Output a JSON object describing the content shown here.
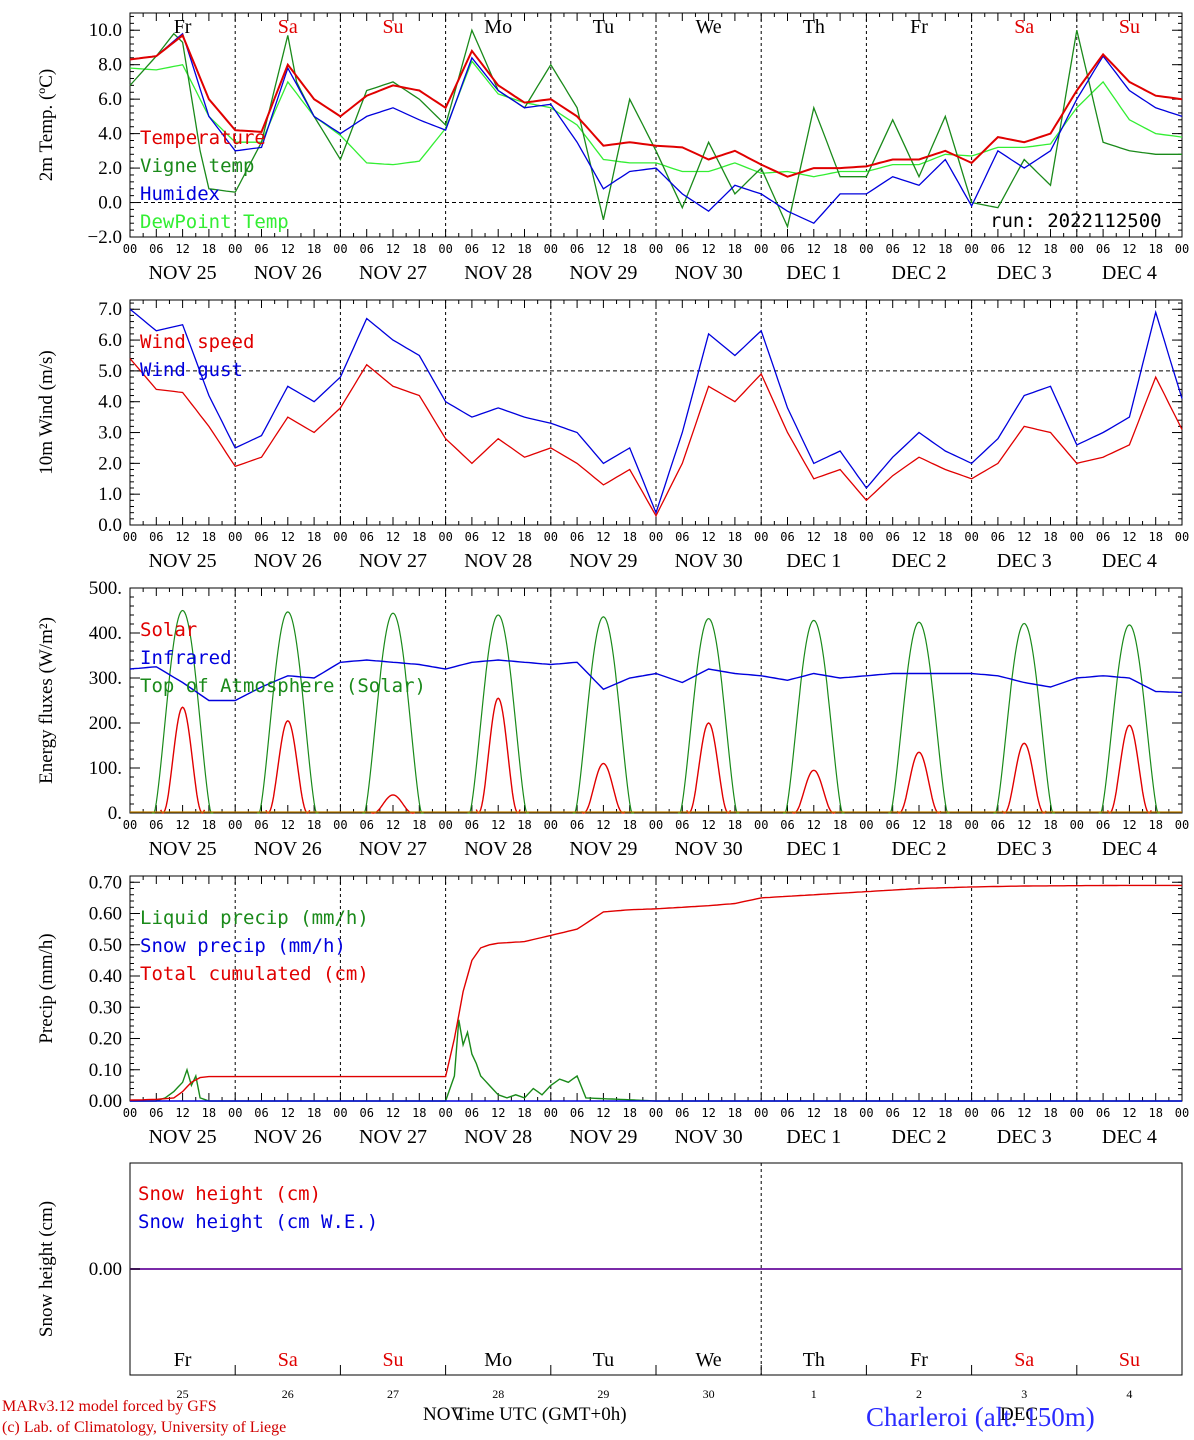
{
  "run_label": "run: 2022112500",
  "station": "Charleroi (alt. 150m)",
  "footer": {
    "model": "MARv3.12 model forced by GFS",
    "credit": "(c) Lab. of Climatology, University of Liege",
    "xlabel": "Time UTC (GMT+0h)",
    "month_left": "NOV",
    "month_right": "DEC"
  },
  "days": [
    "NOV 25",
    "NOV 26",
    "NOV 27",
    "NOV 28",
    "NOV 29",
    "NOV 30",
    "DEC  1",
    "DEC  2",
    "DEC  3",
    "DEC  4"
  ],
  "day_numbers": [
    "25",
    "26",
    "27",
    "28",
    "29",
    "30",
    "1",
    "2",
    "3",
    "4"
  ],
  "weekdays": [
    "Fr",
    "Sa",
    "Su",
    "Mo",
    "Tu",
    "We",
    "Th",
    "Fr",
    "Sa",
    "Su"
  ],
  "weekday_colors": [
    "#000000",
    "#e00000",
    "#e00000",
    "#000000",
    "#000000",
    "#000000",
    "#000000",
    "#000000",
    "#e00000",
    "#e00000"
  ],
  "hour_ticks": [
    "00",
    "06",
    "12",
    "18"
  ],
  "chart_data": [
    {
      "type": "line",
      "ylabel": "2m Temp. (ºC)",
      "ylim": [
        -2,
        11
      ],
      "yticks": [
        "−2.0",
        "0.0",
        "2.0",
        "4.0",
        "6.0",
        "8.0",
        "10.0"
      ],
      "ytick_values": [
        -2,
        0,
        2,
        4,
        6,
        8,
        10
      ],
      "dashed_ref": 0,
      "legend_placement": "left",
      "series": [
        {
          "name": "Temperature",
          "color": "#e00000",
          "x": [
            0,
            6,
            12,
            18,
            24,
            30,
            36,
            42,
            48,
            54,
            60,
            66,
            72,
            78,
            84,
            90,
            96,
            102,
            108,
            114,
            120,
            126,
            132,
            138,
            144,
            150,
            156,
            162,
            168,
            174,
            180,
            186,
            192,
            198,
            204,
            210,
            216,
            222,
            228,
            234,
            240
          ],
          "values": [
            8.3,
            8.5,
            9.7,
            6.0,
            4.2,
            4.1,
            8.0,
            6.0,
            5.0,
            6.2,
            6.8,
            6.5,
            5.5,
            8.8,
            6.8,
            5.8,
            6.0,
            5.0,
            3.3,
            3.5,
            3.3,
            3.2,
            2.5,
            3.0,
            2.2,
            1.5,
            2.0,
            2.0,
            2.1,
            2.5,
            2.5,
            3.0,
            2.3,
            3.8,
            3.5,
            4.0,
            6.5,
            8.6,
            7.0,
            6.2,
            6.0
          ]
        },
        {
          "name": "Vigne temp",
          "color": "#1a8a1a",
          "x": [
            0,
            6,
            10,
            12,
            16,
            18,
            24,
            30,
            36,
            38,
            42,
            48,
            54,
            60,
            66,
            72,
            78,
            84,
            90,
            96,
            102,
            108,
            114,
            120,
            126,
            132,
            138,
            144,
            150,
            156,
            162,
            168,
            174,
            180,
            186,
            192,
            198,
            204,
            210,
            216,
            222,
            228,
            234,
            240
          ],
          "values": [
            6.8,
            8.5,
            9.8,
            9.3,
            3.0,
            0.8,
            0.6,
            3.5,
            9.7,
            7.0,
            5.0,
            2.5,
            6.5,
            7.0,
            6.0,
            4.5,
            10.0,
            6.5,
            5.5,
            8.0,
            5.5,
            -1.0,
            6.0,
            3.0,
            -0.3,
            3.5,
            0.5,
            2.0,
            -1.4,
            5.5,
            1.5,
            1.5,
            4.8,
            1.5,
            5.0,
            0.0,
            -0.3,
            2.5,
            1.0,
            10.0,
            3.5,
            3.0,
            2.8,
            2.8
          ]
        },
        {
          "name": "Humidex",
          "color": "#0000dd",
          "x": [
            0,
            6,
            12,
            18,
            24,
            30,
            36,
            42,
            48,
            54,
            60,
            66,
            72,
            78,
            84,
            90,
            96,
            102,
            108,
            114,
            120,
            126,
            132,
            138,
            144,
            150,
            156,
            162,
            168,
            174,
            180,
            186,
            192,
            198,
            204,
            210,
            216,
            222,
            228,
            234,
            240
          ],
          "values": [
            8.3,
            8.5,
            9.8,
            5.0,
            3.0,
            3.2,
            7.8,
            5.0,
            4.0,
            5.0,
            5.5,
            4.8,
            4.2,
            8.4,
            6.5,
            5.5,
            5.7,
            3.5,
            0.8,
            1.8,
            2.0,
            0.5,
            -0.5,
            1.0,
            0.5,
            -0.5,
            -1.2,
            0.5,
            0.5,
            1.5,
            1.0,
            2.5,
            -0.2,
            3.0,
            2.0,
            3.0,
            6.0,
            8.5,
            6.5,
            5.5,
            5.0
          ]
        },
        {
          "name": "DewPoint Temp",
          "color": "#33ee33",
          "x": [
            0,
            6,
            12,
            18,
            24,
            30,
            36,
            42,
            48,
            54,
            60,
            66,
            72,
            78,
            84,
            90,
            96,
            102,
            108,
            114,
            120,
            126,
            132,
            138,
            144,
            150,
            156,
            162,
            168,
            174,
            180,
            186,
            192,
            198,
            204,
            210,
            216,
            222,
            228,
            234,
            240
          ],
          "values": [
            7.8,
            7.7,
            8.0,
            5.0,
            3.5,
            3.5,
            7.0,
            5.0,
            3.9,
            2.3,
            2.2,
            2.4,
            4.3,
            8.2,
            6.3,
            5.8,
            5.5,
            4.5,
            2.5,
            2.3,
            2.3,
            1.8,
            1.8,
            2.3,
            1.7,
            1.8,
            1.5,
            1.8,
            1.8,
            2.2,
            2.2,
            2.8,
            2.7,
            3.2,
            3.2,
            3.4,
            5.5,
            7.0,
            4.8,
            4.0,
            3.8
          ]
        }
      ]
    },
    {
      "type": "line",
      "ylabel": "10m Wind (m/s)",
      "ylim": [
        0,
        7.3
      ],
      "yticks": [
        "0.0",
        "1.0",
        "2.0",
        "3.0",
        "4.0",
        "5.0",
        "6.0",
        "7.0"
      ],
      "ytick_values": [
        0,
        1,
        2,
        3,
        4,
        5,
        6,
        7
      ],
      "dashed_ref": 5,
      "legend_placement": "top-left",
      "series": [
        {
          "name": "Wind speed",
          "color": "#e00000",
          "x": [
            0,
            6,
            12,
            18,
            24,
            30,
            36,
            42,
            48,
            54,
            60,
            66,
            72,
            78,
            84,
            90,
            96,
            102,
            108,
            114,
            120,
            126,
            132,
            138,
            144,
            150,
            156,
            162,
            168,
            174,
            180,
            186,
            192,
            198,
            204,
            210,
            216,
            222,
            228,
            234,
            240
          ],
          "values": [
            5.4,
            4.4,
            4.3,
            3.2,
            1.9,
            2.2,
            3.5,
            3.0,
            3.8,
            5.2,
            4.5,
            4.2,
            2.8,
            2.0,
            2.8,
            2.2,
            2.5,
            2.0,
            1.3,
            1.8,
            0.3,
            2.0,
            4.5,
            4.0,
            4.9,
            3.0,
            1.5,
            1.8,
            0.8,
            1.6,
            2.2,
            1.8,
            1.5,
            2.0,
            3.2,
            3.0,
            2.0,
            2.2,
            2.6,
            4.8,
            3.1
          ]
        },
        {
          "name": "Wind gust",
          "color": "#0000dd",
          "x": [
            0,
            6,
            12,
            18,
            24,
            30,
            36,
            42,
            48,
            54,
            60,
            66,
            72,
            78,
            84,
            90,
            96,
            102,
            108,
            114,
            120,
            126,
            132,
            138,
            144,
            150,
            156,
            162,
            168,
            174,
            180,
            186,
            192,
            198,
            204,
            210,
            216,
            222,
            228,
            234,
            240
          ],
          "values": [
            7.0,
            6.3,
            6.5,
            4.2,
            2.5,
            2.9,
            4.5,
            4.0,
            4.8,
            6.7,
            6.0,
            5.5,
            4.0,
            3.5,
            3.8,
            3.5,
            3.3,
            3.0,
            2.0,
            2.5,
            0.4,
            3.0,
            6.2,
            5.5,
            6.3,
            3.8,
            2.0,
            2.4,
            1.2,
            2.2,
            3.0,
            2.4,
            2.0,
            2.8,
            4.2,
            4.5,
            2.6,
            3.0,
            3.5,
            6.9,
            4.1
          ]
        }
      ]
    },
    {
      "type": "line",
      "ylabel": "Energy fluxes (W/m²)",
      "ylim": [
        0,
        500
      ],
      "yticks": [
        "0.",
        "100.",
        "200.",
        "300.",
        "400.",
        "500."
      ],
      "ytick_values": [
        0,
        100,
        200,
        300,
        400,
        500
      ],
      "legend_placement": "left",
      "series": [
        {
          "name": "Solar",
          "color": "#e00000",
          "daily_peak": [
            235,
            205,
            40,
            255,
            110,
            200,
            95,
            135,
            155,
            195
          ]
        },
        {
          "name": "Infrared",
          "color": "#0000dd",
          "x": [
            0,
            6,
            12,
            18,
            24,
            30,
            36,
            42,
            48,
            54,
            60,
            66,
            72,
            78,
            84,
            90,
            96,
            102,
            108,
            114,
            120,
            126,
            132,
            138,
            144,
            150,
            156,
            162,
            168,
            174,
            180,
            186,
            192,
            198,
            204,
            210,
            216,
            222,
            228,
            234,
            240
          ],
          "values": [
            320,
            325,
            290,
            250,
            250,
            280,
            305,
            300,
            335,
            340,
            335,
            330,
            320,
            335,
            340,
            335,
            330,
            335,
            275,
            300,
            310,
            290,
            320,
            310,
            305,
            295,
            310,
            300,
            305,
            310,
            310,
            310,
            310,
            305,
            290,
            280,
            300,
            305,
            300,
            270,
            268
          ]
        },
        {
          "name": "Top of Atmosphere (Solar)",
          "color": "#1a8a1a",
          "daily_peak": [
            450,
            447,
            444,
            440,
            436,
            432,
            428,
            424,
            421,
            418
          ]
        }
      ]
    },
    {
      "type": "line",
      "ylabel": "Precip (mm/h)",
      "ylim": [
        0,
        0.72
      ],
      "yticks": [
        "0.00",
        "0.10",
        "0.20",
        "0.30",
        "0.40",
        "0.50",
        "0.60",
        "0.70"
      ],
      "ytick_values": [
        0,
        0.1,
        0.2,
        0.3,
        0.4,
        0.5,
        0.6,
        0.7
      ],
      "legend_placement": "top-left",
      "series": [
        {
          "name": "Liquid precip (mm/h)",
          "color": "#1a8a1a",
          "x": [
            0,
            6,
            8,
            10,
            12,
            13,
            14,
            15,
            16,
            18,
            60,
            72,
            74,
            75,
            76,
            77,
            78,
            79,
            80,
            82,
            84,
            86,
            88,
            90,
            92,
            94,
            96,
            98,
            100,
            102,
            104,
            120,
            240
          ],
          "values": [
            0,
            0,
            0.01,
            0.03,
            0.06,
            0.1,
            0.05,
            0.08,
            0.01,
            0,
            0,
            0,
            0.08,
            0.26,
            0.18,
            0.22,
            0.15,
            0.12,
            0.08,
            0.05,
            0.02,
            0.01,
            0.02,
            0.01,
            0.04,
            0.02,
            0.05,
            0.07,
            0.06,
            0.08,
            0.01,
            0,
            0
          ]
        },
        {
          "name": "Snow precip (mm/h)",
          "color": "#0000dd",
          "x": [
            0,
            240
          ],
          "values": [
            0,
            0
          ]
        },
        {
          "name": "Total cumulated (cm)",
          "color": "#e00000",
          "x": [
            0,
            6,
            10,
            12,
            14,
            16,
            18,
            72,
            74,
            76,
            78,
            80,
            82,
            84,
            90,
            96,
            102,
            108,
            114,
            120,
            126,
            132,
            138,
            144,
            156,
            168,
            180,
            192,
            204,
            216,
            228,
            240
          ],
          "values": [
            0.003,
            0.005,
            0.01,
            0.03,
            0.06,
            0.075,
            0.078,
            0.078,
            0.2,
            0.35,
            0.45,
            0.49,
            0.5,
            0.505,
            0.51,
            0.53,
            0.55,
            0.605,
            0.612,
            0.615,
            0.62,
            0.625,
            0.632,
            0.65,
            0.66,
            0.67,
            0.68,
            0.685,
            0.688,
            0.689,
            0.69,
            0.69
          ]
        }
      ]
    },
    {
      "type": "line",
      "ylabel": "Snow height (cm)",
      "yticks": [
        "0.00"
      ],
      "ytick_values": [
        0
      ],
      "legend_placement": "top-left",
      "series": [
        {
          "name": "Snow height (cm)",
          "color": "#e00000",
          "x": [
            0,
            240
          ],
          "values": [
            0,
            0
          ]
        },
        {
          "name": "Snow height (cm W.E.)",
          "color": "#0000dd",
          "x": [
            0,
            240
          ],
          "values": [
            0,
            0
          ]
        }
      ]
    }
  ]
}
